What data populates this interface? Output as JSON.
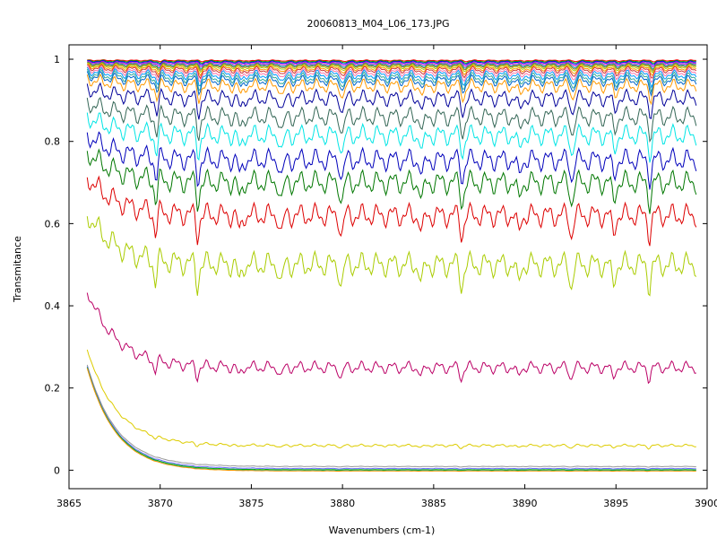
{
  "chart_data": {
    "type": "line",
    "title": "20060813_M04_L06_173.JPG",
    "xlabel": "Wavenumbers (cm-1)",
    "ylabel": "Transmitance",
    "xlim": [
      3865,
      3900
    ],
    "ylim": [
      -0.045,
      1.035
    ],
    "x_ticks": [
      3865,
      3870,
      3875,
      3880,
      3885,
      3890,
      3895,
      3900
    ],
    "x_tick_labels": [
      "3865",
      "3870",
      "3875",
      "3880",
      "3885",
      "3890",
      "3895",
      "3900"
    ],
    "y_ticks": [
      0,
      0.2,
      0.4,
      0.6,
      0.8,
      1
    ],
    "y_tick_labels": [
      "0",
      "0.2",
      "0.4",
      "0.6",
      "0.8",
      "1"
    ],
    "x_range": [
      3866,
      3899.4
    ],
    "grid": false,
    "legend": "none",
    "series": [
      {
        "color": "#ff0000",
        "base": 0.997,
        "depth": 0.004
      },
      {
        "color": "#00aa00",
        "base": 0.995,
        "depth": 0.006
      },
      {
        "color": "#0000ff",
        "base": 0.993,
        "depth": 0.008
      },
      {
        "color": "#cc00cc",
        "base": 0.99,
        "depth": 0.01
      },
      {
        "color": "#00aaaa",
        "base": 0.987,
        "depth": 0.012
      },
      {
        "color": "#996633",
        "base": 0.985,
        "depth": 0.014
      },
      {
        "color": "#aacc00",
        "base": 0.982,
        "depth": 0.016
      },
      {
        "color": "#ff9900",
        "base": 0.978,
        "depth": 0.02
      },
      {
        "color": "#cc3333",
        "base": 0.974,
        "depth": 0.024
      },
      {
        "color": "#ff77aa",
        "base": 0.968,
        "depth": 0.028
      },
      {
        "color": "#0099ff",
        "base": 0.962,
        "depth": 0.034
      },
      {
        "color": "#33aa99",
        "base": 0.955,
        "depth": 0.038
      },
      {
        "color": "#0066cc",
        "base": 0.948,
        "depth": 0.04
      },
      {
        "color": "#ff9900",
        "base": 0.935,
        "depth": 0.05
      },
      {
        "color": "#000099",
        "base": 0.905,
        "depth": 0.06
      },
      {
        "color": "#336655",
        "base": 0.86,
        "depth": 0.07
      },
      {
        "color": "#00e5e5",
        "base": 0.815,
        "depth": 0.075
      },
      {
        "color": "#0000bb",
        "base": 0.755,
        "depth": 0.08
      },
      {
        "color": "#007700",
        "base": 0.7,
        "depth": 0.085
      },
      {
        "color": "#dd0000",
        "base": 0.62,
        "depth": 0.085
      },
      {
        "color": "#aacc00",
        "base": 0.5,
        "depth": 0.09
      },
      {
        "color": "#bb0066",
        "base": 0.25,
        "depth": 0.045
      },
      {
        "color": "#ddcc00",
        "base": 0.06,
        "depth": 0.01
      },
      {
        "color": "#999999",
        "base": 0.009,
        "depth": 0.002
      },
      {
        "color": "#6666ff",
        "base": 0.004,
        "depth": 0.002
      },
      {
        "color": "#00aa00",
        "base": 0.001,
        "depth": 0.001
      },
      {
        "color": "#00aaaa",
        "base": -0.001,
        "depth": 0.001
      },
      {
        "color": "#ff9900",
        "base": -0.002,
        "depth": 0.001
      }
    ]
  }
}
